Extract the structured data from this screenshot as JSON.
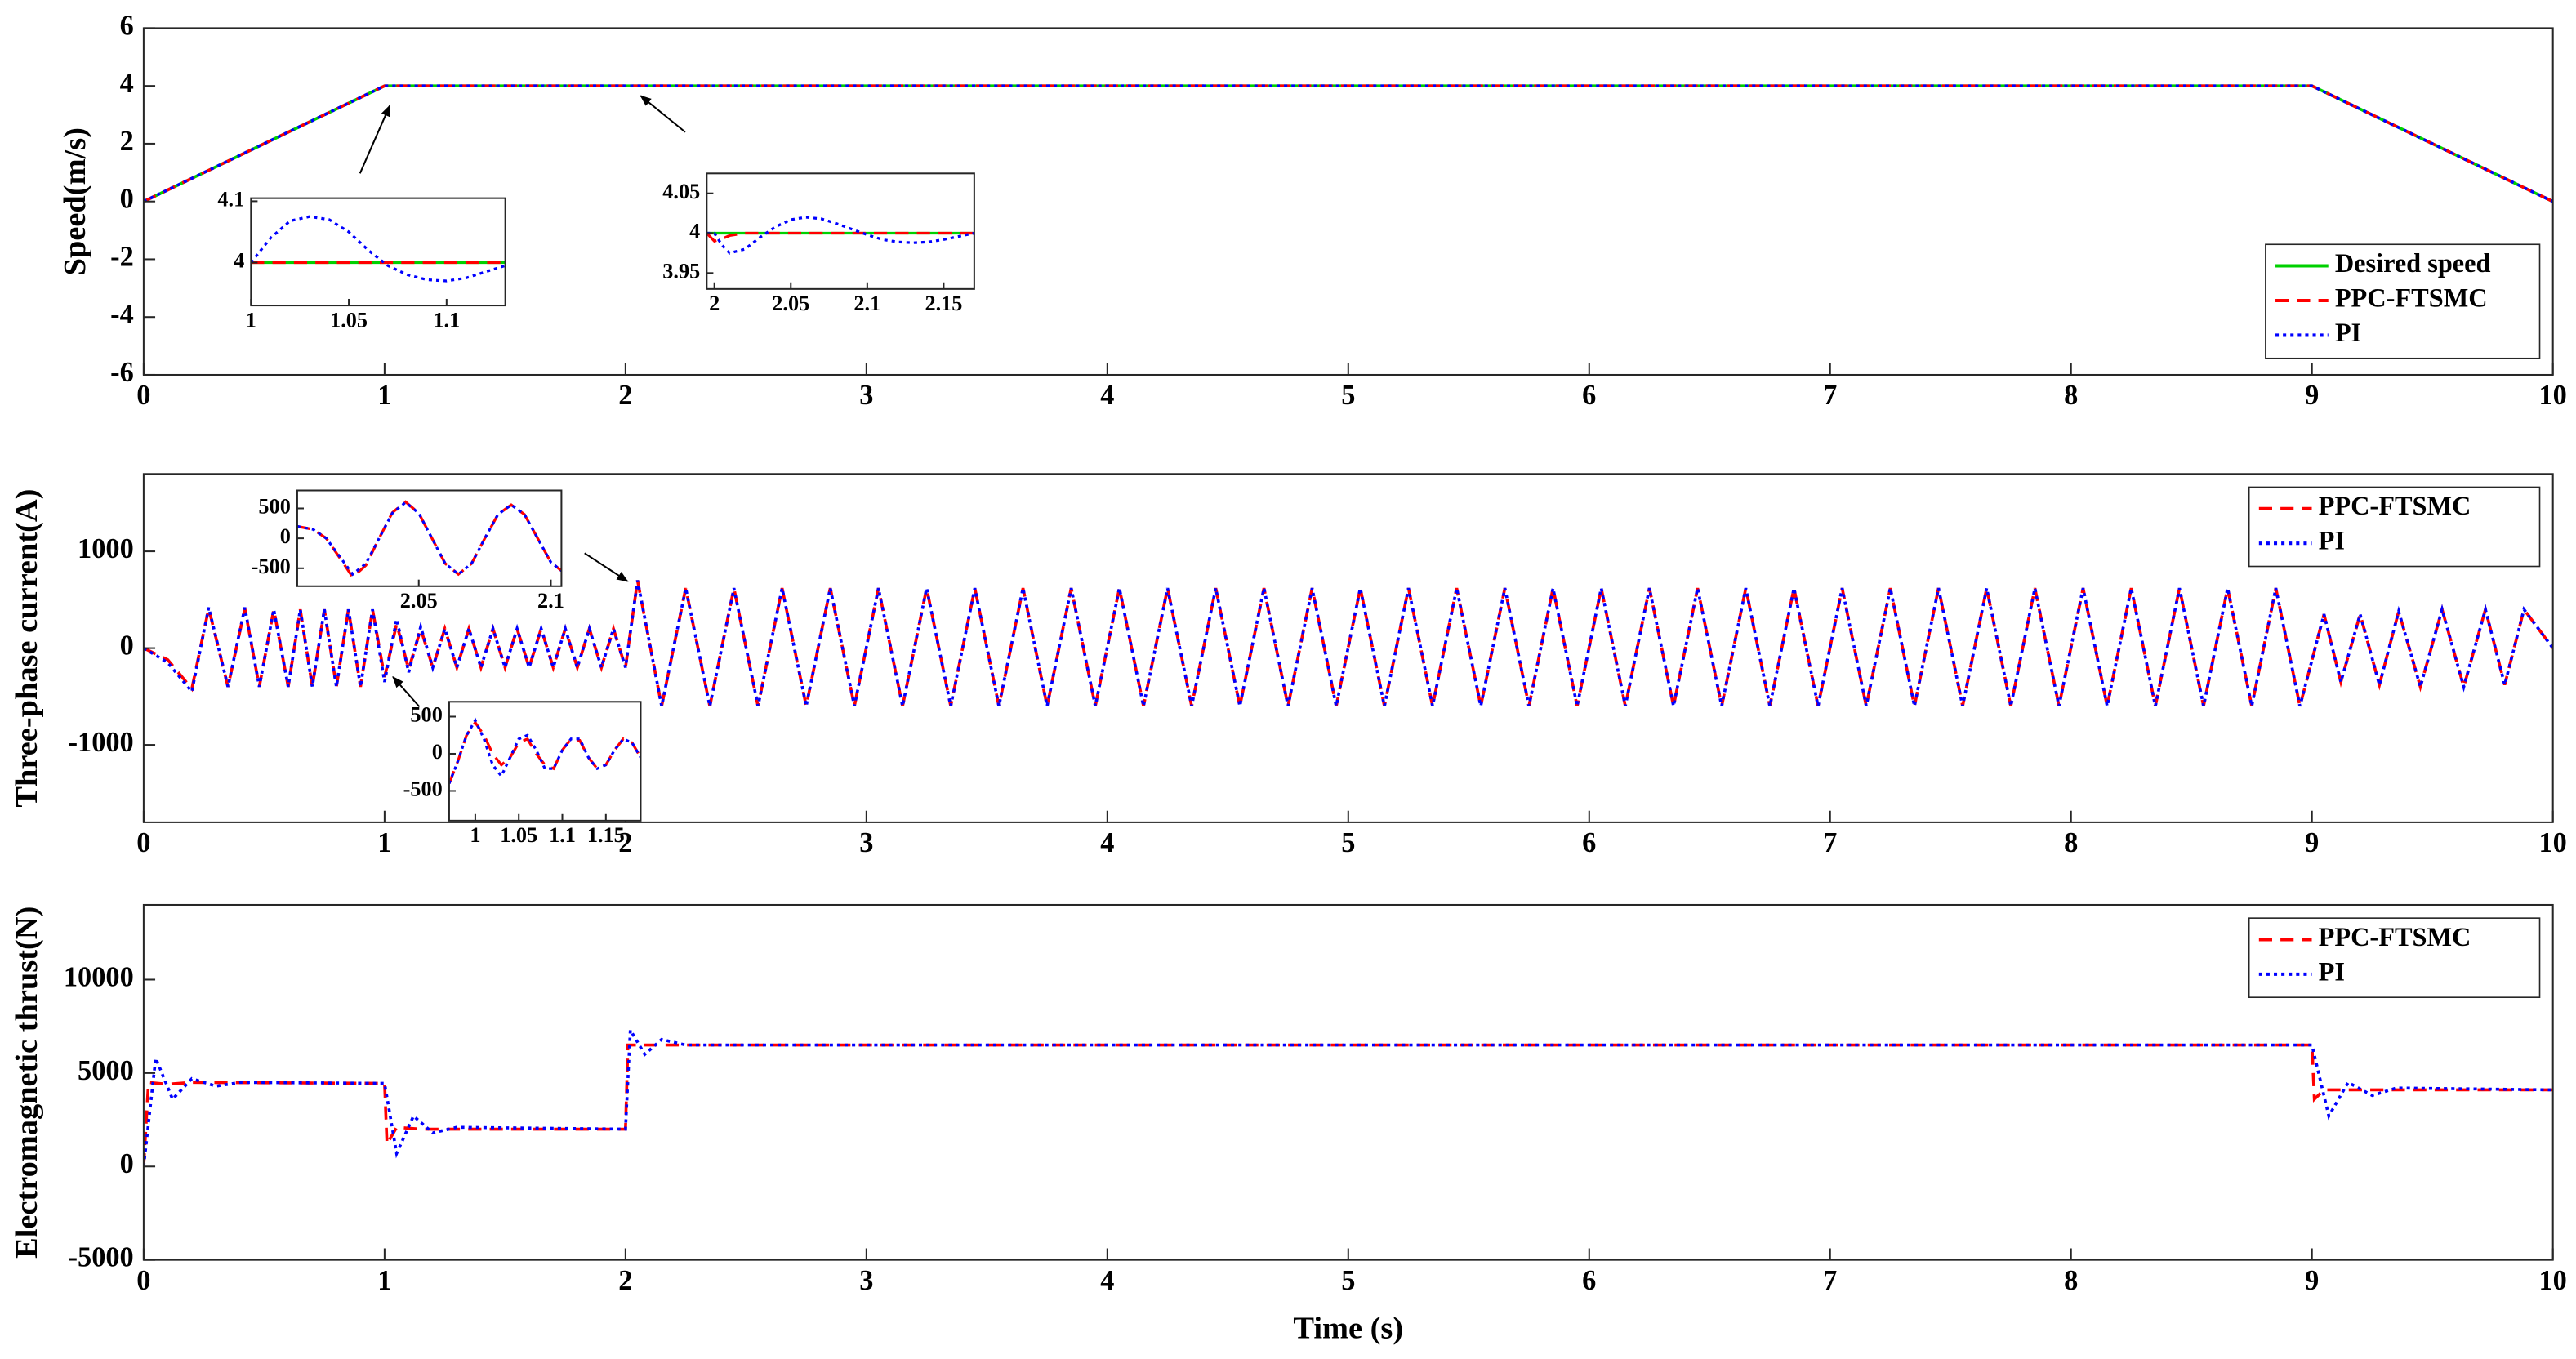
{
  "chart_data": [
    {
      "type": "line",
      "ylabel": "Speed(m/s)",
      "xlim": [
        0,
        10
      ],
      "ylim": [
        -6,
        6
      ],
      "xticks": [
        0,
        1,
        2,
        3,
        4,
        5,
        6,
        7,
        8,
        9,
        10
      ],
      "yticks": [
        -6,
        -4,
        -2,
        0,
        2,
        4,
        6
      ],
      "legend": "lower right",
      "x": [
        0,
        1,
        9,
        10
      ],
      "series": [
        {
          "name": "Desired speed",
          "color": "#00d000",
          "style": "solid",
          "values": [
            0,
            4,
            4,
            0
          ]
        },
        {
          "name": "PPC-FTSMC",
          "color": "#ff0000",
          "style": "dashed",
          "values": [
            0,
            4,
            4,
            0
          ]
        },
        {
          "name": "PI",
          "color": "#0000ff",
          "style": "dotted",
          "values": [
            0,
            4,
            4,
            0
          ]
        }
      ]
    },
    {
      "type": "line",
      "xlim": [
        1,
        1.13
      ],
      "ylim": [
        3.93,
        4.105
      ],
      "xticks": [
        1,
        1.05,
        1.1
      ],
      "yticks": [
        4,
        4.1
      ],
      "x": [
        1,
        1.01,
        1.02,
        1.03,
        1.04,
        1.05,
        1.06,
        1.07,
        1.08,
        1.09,
        1.1,
        1.11,
        1.12,
        1.13
      ],
      "series": [
        {
          "color": "#00d000",
          "style": "solid",
          "values": [
            4,
            4,
            4,
            4,
            4,
            4,
            4,
            4,
            4,
            4,
            4,
            4,
            4,
            4
          ]
        },
        {
          "color": "#ff0000",
          "style": "dashed",
          "values": [
            4,
            4,
            4,
            4,
            4,
            4,
            4,
            4,
            4,
            4,
            4,
            4,
            4,
            4
          ]
        },
        {
          "color": "#0000ff",
          "style": "dotted",
          "values": [
            4,
            4.04,
            4.068,
            4.075,
            4.07,
            4.05,
            4.02,
            3.995,
            3.98,
            3.972,
            3.97,
            3.975,
            3.985,
            3.995
          ]
        }
      ]
    },
    {
      "type": "line",
      "xlim": [
        1.995,
        2.17
      ],
      "ylim": [
        3.93,
        4.075
      ],
      "xticks": [
        2,
        2.05,
        2.1,
        2.15
      ],
      "yticks": [
        3.95,
        4,
        4.05
      ],
      "x": [
        1.995,
        2,
        2.005,
        2.01,
        2.02,
        2.03,
        2.04,
        2.05,
        2.06,
        2.07,
        2.08,
        2.09,
        2.1,
        2.11,
        2.12,
        2.13,
        2.14,
        2.15,
        2.16,
        2.17
      ],
      "series": [
        {
          "color": "#00d000",
          "style": "solid",
          "values": [
            4,
            4,
            4,
            4,
            4,
            4,
            4,
            4,
            4,
            4,
            4,
            4,
            4,
            4,
            4,
            4,
            4,
            4,
            4,
            4
          ]
        },
        {
          "color": "#ff0000",
          "style": "dashed",
          "values": [
            4,
            3.99,
            3.993,
            3.997,
            4,
            4,
            4,
            4,
            4,
            4,
            4,
            4,
            4,
            4,
            4,
            4,
            4,
            4,
            4,
            4
          ]
        },
        {
          "color": "#0000ff",
          "style": "dotted",
          "values": [
            4,
            4,
            3.985,
            3.975,
            3.98,
            3.995,
            4.008,
            4.017,
            4.02,
            4.018,
            4.012,
            4.005,
            3.998,
            3.992,
            3.989,
            3.988,
            3.989,
            3.992,
            3.996,
            4
          ]
        }
      ]
    },
    {
      "type": "line",
      "ylabel": "Three-phase current(A)",
      "xlim": [
        0,
        10
      ],
      "ylim": [
        -1800,
        1800
      ],
      "xticks": [
        0,
        1,
        2,
        3,
        4,
        5,
        6,
        7,
        8,
        9,
        10
      ],
      "yticks": [
        -1000,
        0,
        1000
      ],
      "legend": "upper right",
      "x": [
        0,
        0.1,
        0.2,
        0.27,
        0.35,
        0.42,
        0.48,
        0.54,
        0.6,
        0.65,
        0.7,
        0.75,
        0.8,
        0.85,
        0.9,
        0.95,
        1.0,
        1.05,
        1.1,
        1.15,
        1.2,
        1.25,
        1.3,
        1.35,
        1.4,
        1.45,
        1.5,
        1.55,
        1.6,
        1.65,
        1.7,
        1.75,
        1.8,
        1.85,
        1.9,
        1.95,
        2.0,
        2.05,
        2.15,
        2.25,
        2.35,
        2.45,
        2.55,
        2.65,
        2.75,
        2.85,
        2.95,
        3.05,
        3.15,
        3.25,
        3.35,
        3.45,
        3.55,
        3.65,
        3.75,
        3.85,
        3.95,
        4.05,
        4.15,
        4.25,
        4.35,
        4.45,
        4.55,
        4.65,
        4.75,
        4.85,
        4.95,
        5.05,
        5.15,
        5.25,
        5.35,
        5.45,
        5.55,
        5.65,
        5.75,
        5.85,
        5.95,
        6.05,
        6.15,
        6.25,
        6.35,
        6.45,
        6.55,
        6.65,
        6.75,
        6.85,
        6.95,
        7.05,
        7.15,
        7.25,
        7.35,
        7.45,
        7.55,
        7.65,
        7.75,
        7.85,
        7.95,
        8.05,
        8.15,
        8.25,
        8.35,
        8.45,
        8.55,
        8.65,
        8.75,
        8.85,
        8.95,
        9.05,
        9.12,
        9.2,
        9.28,
        9.36,
        9.45,
        9.54,
        9.63,
        9.72,
        9.8,
        9.88,
        10
      ],
      "series": [
        {
          "name": "PPC-FTSMC",
          "color": "#ff0000",
          "style": "dashed",
          "values": [
            0,
            -120,
            -420,
            410,
            -400,
            410,
            -400,
            400,
            -400,
            400,
            -400,
            400,
            -400,
            400,
            -400,
            400,
            -300,
            250,
            -220,
            200,
            -200,
            200,
            -200,
            200,
            -200,
            200,
            -200,
            200,
            -200,
            200,
            -200,
            200,
            -200,
            200,
            -200,
            200,
            -200,
            700,
            -600,
            620,
            -600,
            620,
            -600,
            620,
            -600,
            620,
            -600,
            620,
            -600,
            620,
            -600,
            620,
            -600,
            620,
            -600,
            620,
            -600,
            620,
            -600,
            620,
            -600,
            620,
            -600,
            620,
            -600,
            620,
            -600,
            620,
            -600,
            620,
            -600,
            620,
            -600,
            620,
            -600,
            620,
            -600,
            620,
            -600,
            620,
            -600,
            620,
            -600,
            620,
            -600,
            620,
            -600,
            620,
            -600,
            620,
            -600,
            620,
            -600,
            620,
            -600,
            620,
            -600,
            620,
            -600,
            620,
            -600,
            620,
            -600,
            620,
            -600,
            620,
            -600,
            350,
            -350,
            350,
            -380,
            380,
            -400,
            400,
            -400,
            400,
            -380,
            400,
            0
          ]
        },
        {
          "name": "PI",
          "color": "#0000ff",
          "style": "dotted",
          "values": [
            0,
            -150,
            -450,
            420,
            -400,
            420,
            -400,
            400,
            -400,
            400,
            -400,
            400,
            -400,
            400,
            -400,
            400,
            -350,
            300,
            -250,
            220,
            -200,
            200,
            -200,
            200,
            -200,
            200,
            -200,
            200,
            -200,
            200,
            -200,
            200,
            -200,
            200,
            -200,
            200,
            -200,
            700,
            -600,
            620,
            -600,
            620,
            -600,
            620,
            -600,
            620,
            -600,
            620,
            -600,
            620,
            -600,
            620,
            -600,
            620,
            -600,
            620,
            -600,
            620,
            -600,
            620,
            -600,
            620,
            -600,
            620,
            -600,
            620,
            -600,
            620,
            -600,
            620,
            -600,
            620,
            -600,
            620,
            -600,
            620,
            -600,
            620,
            -600,
            620,
            -600,
            620,
            -600,
            620,
            -600,
            620,
            -600,
            620,
            -600,
            620,
            -600,
            620,
            -600,
            620,
            -600,
            620,
            -600,
            620,
            -600,
            620,
            -600,
            620,
            -600,
            620,
            -600,
            620,
            -600,
            350,
            -350,
            350,
            -380,
            380,
            -400,
            400,
            -400,
            400,
            -380,
            400,
            0
          ]
        }
      ]
    },
    {
      "type": "line",
      "xlim": [
        2.004,
        2.104
      ],
      "ylim": [
        -800,
        800
      ],
      "xticks": [
        2.05,
        2.1
      ],
      "yticks": [
        -500,
        0,
        500
      ],
      "x": [
        2.004,
        2.01,
        2.015,
        2.02,
        2.025,
        2.03,
        2.035,
        2.04,
        2.045,
        2.05,
        2.055,
        2.06,
        2.065,
        2.07,
        2.075,
        2.08,
        2.085,
        2.09,
        2.095,
        2.1,
        2.104
      ],
      "series": [
        {
          "color": "#ff0000",
          "style": "dashed",
          "values": [
            200,
            150,
            0,
            -320,
            -650,
            -450,
            0,
            430,
            610,
            420,
            0,
            -420,
            -600,
            -420,
            0,
            400,
            560,
            400,
            0,
            -400,
            -540
          ]
        },
        {
          "color": "#0000ff",
          "style": "dotted",
          "values": [
            200,
            150,
            0,
            -300,
            -600,
            -420,
            0,
            420,
            600,
            420,
            0,
            -420,
            -600,
            -420,
            0,
            400,
            560,
            400,
            0,
            -400,
            -540
          ]
        }
      ]
    },
    {
      "type": "line",
      "xlim": [
        0.97,
        1.19
      ],
      "ylim": [
        -900,
        700
      ],
      "xticks": [
        1,
        1.05,
        1.1,
        1.15
      ],
      "yticks": [
        -500,
        0,
        500
      ],
      "x": [
        0.97,
        0.98,
        0.99,
        1.0,
        1.01,
        1.02,
        1.03,
        1.04,
        1.05,
        1.06,
        1.07,
        1.08,
        1.09,
        1.1,
        1.11,
        1.12,
        1.13,
        1.14,
        1.15,
        1.16,
        1.17,
        1.18,
        1.19
      ],
      "series": [
        {
          "color": "#ff0000",
          "style": "dashed",
          "values": [
            -400,
            -100,
            250,
            420,
            250,
            0,
            -150,
            -50,
            150,
            200,
            0,
            -150,
            -200,
            50,
            200,
            180,
            -50,
            -200,
            -150,
            50,
            200,
            150,
            -50
          ]
        },
        {
          "color": "#0000ff",
          "style": "dotted",
          "values": [
            -400,
            -100,
            250,
            450,
            200,
            -150,
            -300,
            -50,
            200,
            250,
            50,
            -200,
            -200,
            50,
            200,
            200,
            -50,
            -200,
            -150,
            50,
            200,
            150,
            -50
          ]
        }
      ]
    },
    {
      "type": "line",
      "ylabel": "Electromagnetic thrust(N)",
      "xlabel": "Time (s)",
      "xlim": [
        0,
        10
      ],
      "ylim": [
        -5000,
        14000
      ],
      "xticks": [
        0,
        1,
        2,
        3,
        4,
        5,
        6,
        7,
        8,
        9,
        10
      ],
      "yticks": [
        -5000,
        0,
        5000,
        10000
      ],
      "legend": "upper right",
      "series": [
        {
          "name": "PPC-FTSMC",
          "color": "#ff0000",
          "style": "dashed",
          "x": [
            0,
            0.02,
            0.1,
            0.2,
            1.0,
            1.01,
            1.05,
            1.15,
            2.0,
            2.01,
            2.1,
            9.0,
            9.01,
            9.05,
            10
          ],
          "values": [
            0,
            4500,
            4400,
            4500,
            4450,
            1200,
            2100,
            2000,
            2000,
            6500,
            6500,
            6500,
            3600,
            4100,
            4100
          ]
        },
        {
          "name": "PI",
          "color": "#0000ff",
          "style": "dotted",
          "x": [
            0,
            0.05,
            0.12,
            0.2,
            0.3,
            0.4,
            1.0,
            1.05,
            1.12,
            1.2,
            1.3,
            2.0,
            2.02,
            2.08,
            2.15,
            2.25,
            9.0,
            9.07,
            9.15,
            9.25,
            9.35,
            10
          ],
          "values": [
            0,
            5800,
            3600,
            4700,
            4300,
            4500,
            4450,
            700,
            2700,
            1800,
            2100,
            2000,
            7300,
            6000,
            6800,
            6500,
            6500,
            2700,
            4500,
            3800,
            4200,
            4100
          ]
        }
      ]
    }
  ]
}
